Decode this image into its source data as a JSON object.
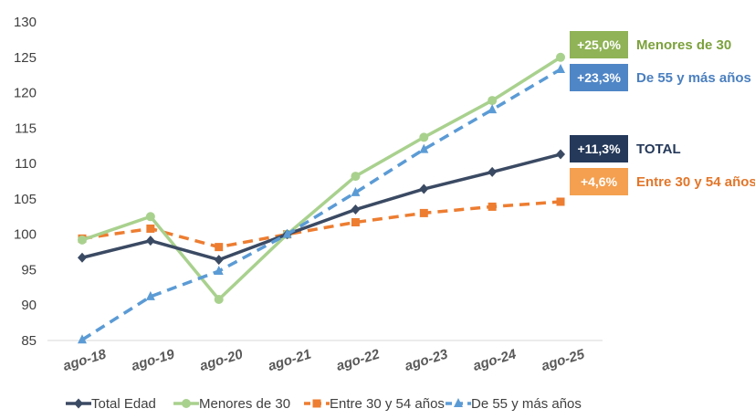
{
  "chart_data": {
    "type": "line",
    "title": "",
    "xlabel": "",
    "ylabel": "",
    "categories": [
      "ago-18",
      "ago-19",
      "ago-20",
      "ago-21",
      "ago-22",
      "ago-23",
      "ago-24",
      "ago-25"
    ],
    "ylim": [
      85,
      130
    ],
    "yticks": [
      85,
      90,
      95,
      100,
      105,
      110,
      115,
      120,
      125,
      130
    ],
    "grid": false,
    "legend_position": "bottom",
    "series": [
      {
        "name": "Total Edad",
        "color": "#3b4a63",
        "dash": "solid",
        "marker": "diamond",
        "values": [
          96.7,
          99.1,
          96.4,
          100,
          103.5,
          106.4,
          108.8,
          111.3
        ]
      },
      {
        "name": "Menores de 30",
        "color": "#a9d18e",
        "dash": "solid",
        "marker": "circle",
        "values": [
          99.2,
          102.5,
          90.8,
          100,
          108.2,
          113.7,
          118.9,
          125.0
        ]
      },
      {
        "name": "Entre 30 y 54 años",
        "color": "#ed7d31",
        "dash": "dashed",
        "marker": "square",
        "values": [
          99.4,
          100.8,
          98.2,
          100,
          101.7,
          103.0,
          103.9,
          104.6
        ]
      },
      {
        "name": "De 55 y más años",
        "color": "#5b9bd5",
        "dash": "dashed",
        "marker": "triangle",
        "values": [
          85.1,
          91.2,
          94.8,
          100,
          105.9,
          112.0,
          117.6,
          123.3
        ]
      }
    ],
    "annotations": [
      {
        "value": "+25,0%",
        "name": "Menores de 30",
        "badge_color": "#8fb356",
        "name_color": "#7ca13c",
        "y": 125.0
      },
      {
        "value": "+23,3%",
        "name": "De 55 y más años",
        "badge_color": "#4f86c6",
        "name_color": "#4a7fbf",
        "y": 123.3
      },
      {
        "value": "+11,3%",
        "name": "TOTAL",
        "badge_color": "#25395a",
        "name_color": "#25395a",
        "y": 111.3
      },
      {
        "value": "+4,6%",
        "name": "Entre 30 y 54 años",
        "badge_color": "#f4a050",
        "name_color": "#e2762a",
        "y": 104.6
      }
    ]
  }
}
